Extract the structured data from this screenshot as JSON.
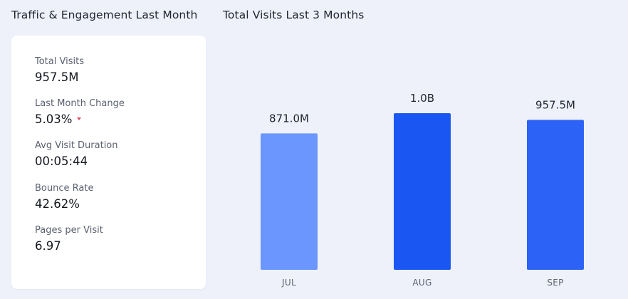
{
  "panel_left": {
    "title": "Traffic & Engagement Last Month",
    "metrics": [
      {
        "label": "Total Visits",
        "value": "957.5M"
      },
      {
        "label": "Last Month Change",
        "value": "5.03%",
        "trend": "down",
        "trend_icon": "caret-down-icon",
        "trend_color": "#e0455c"
      },
      {
        "label": "Avg Visit Duration",
        "value": "00:05:44"
      },
      {
        "label": "Bounce Rate",
        "value": "42.62%"
      },
      {
        "label": "Pages per Visit",
        "value": "6.97"
      }
    ]
  },
  "panel_right": {
    "title": "Total Visits Last 3 Months"
  },
  "chart_data": {
    "type": "bar",
    "categories": [
      "JUL",
      "AUG",
      "SEP"
    ],
    "values": [
      871.0,
      1000.0,
      957.5
    ],
    "value_unit": "millions of visits",
    "data_labels": [
      "871.0M",
      "1.0B",
      "957.5M"
    ],
    "bar_colors": [
      "#6b96fe",
      "#1a56f2",
      "#2d62f6"
    ],
    "ylim": [
      0,
      1000
    ],
    "grid": false,
    "axes_visible": false
  },
  "colors": {
    "background": "#eef1fa",
    "card": "#ffffff",
    "text_primary": "#1f2430",
    "text_secondary": "#5b6170"
  }
}
